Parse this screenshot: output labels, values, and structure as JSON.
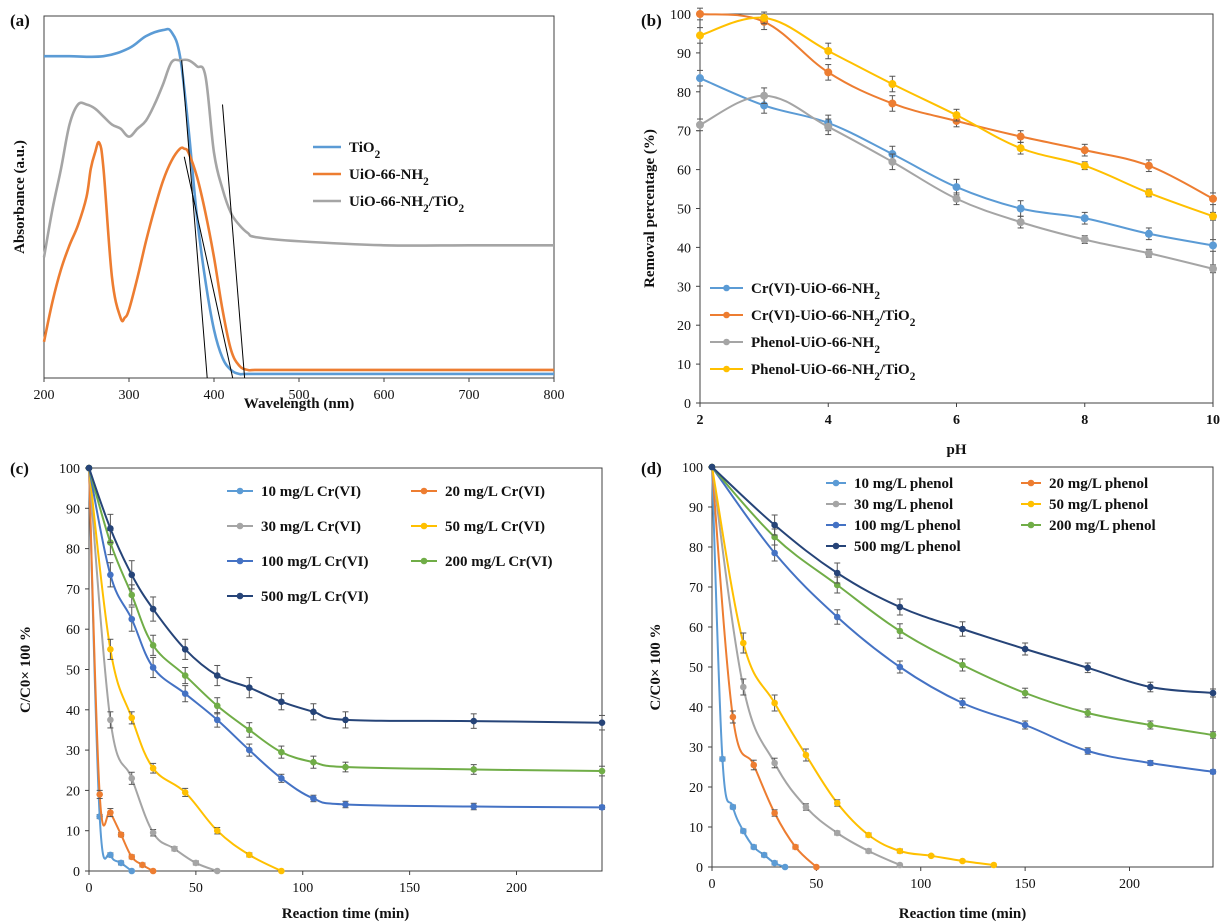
{
  "figure": {
    "colors": {
      "blue": "#5B9BD5",
      "orange": "#ED7D31",
      "gray": "#A5A5A5",
      "yellow": "#FFC000",
      "darkblue": "#4472C4",
      "green": "#70AD47",
      "navy": "#264478",
      "black": "#000000"
    }
  },
  "chart_data": [
    {
      "panel": "(a)",
      "type": "line",
      "xlabel": "Wavelength (nm)",
      "ylabel": "Absorbance (a.u.)",
      "xlim": [
        200,
        800
      ],
      "xticks": [
        200,
        300,
        400,
        500,
        600,
        700,
        800
      ],
      "yticks_shown": false,
      "legend_position": "right-center",
      "series": [
        {
          "name": "TiO2",
          "color": "#5B9BD5",
          "x": [
            200,
            230,
            270,
            300,
            320,
            340,
            350,
            360,
            370,
            380,
            390,
            400,
            410,
            420,
            430,
            440,
            500,
            600,
            700,
            800
          ],
          "y": [
            0.8,
            0.8,
            0.8,
            0.82,
            0.85,
            0.865,
            0.86,
            0.8,
            0.62,
            0.4,
            0.24,
            0.12,
            0.05,
            0.02,
            0.01,
            0.01,
            0.01,
            0.01,
            0.01,
            0.01
          ]
        },
        {
          "name": "UiO-66-NH2",
          "color": "#ED7D31",
          "x": [
            200,
            210,
            220,
            230,
            240,
            250,
            255,
            260,
            265,
            270,
            280,
            290,
            295,
            300,
            310,
            320,
            330,
            340,
            350,
            360,
            365,
            370,
            380,
            390,
            400,
            410,
            420,
            430,
            440,
            450,
            500,
            600,
            700,
            800
          ],
          "y": [
            0.09,
            0.19,
            0.27,
            0.33,
            0.38,
            0.45,
            0.52,
            0.56,
            0.585,
            0.52,
            0.25,
            0.15,
            0.15,
            0.17,
            0.25,
            0.34,
            0.42,
            0.49,
            0.54,
            0.57,
            0.57,
            0.56,
            0.5,
            0.41,
            0.3,
            0.17,
            0.07,
            0.03,
            0.02,
            0.02,
            0.02,
            0.02,
            0.02,
            0.02
          ]
        },
        {
          "name": "UiO-66-NH2/TiO2",
          "color": "#A5A5A5",
          "x": [
            200,
            210,
            220,
            230,
            240,
            250,
            260,
            270,
            280,
            290,
            300,
            310,
            320,
            330,
            340,
            350,
            360,
            370,
            380,
            390,
            400,
            410,
            420,
            430,
            440,
            450,
            500,
            600,
            700,
            800
          ],
          "y": [
            0.3,
            0.42,
            0.52,
            0.63,
            0.68,
            0.68,
            0.67,
            0.65,
            0.63,
            0.62,
            0.6,
            0.62,
            0.64,
            0.68,
            0.73,
            0.785,
            0.79,
            0.79,
            0.775,
            0.75,
            0.56,
            0.47,
            0.41,
            0.38,
            0.36,
            0.35,
            0.34,
            0.33,
            0.33,
            0.33
          ]
        },
        {
          "name": "tangent-1",
          "color": "#000000",
          "x": [
            362,
            392
          ],
          "y": [
            0.79,
            0.0
          ]
        },
        {
          "name": "tangent-2",
          "color": "#000000",
          "x": [
            365,
            422
          ],
          "y": [
            0.55,
            0.0
          ]
        },
        {
          "name": "tangent-3",
          "color": "#000000",
          "x": [
            410,
            436
          ],
          "y": [
            0.68,
            0.0
          ]
        }
      ]
    },
    {
      "panel": "(b)",
      "type": "line",
      "xlabel": "pH",
      "ylabel": "Removal percentage (%)",
      "xlim": [
        2,
        10
      ],
      "ylim": [
        0,
        100
      ],
      "xticks": [
        2,
        4,
        6,
        8,
        10
      ],
      "yticks": [
        0,
        10,
        20,
        30,
        40,
        50,
        60,
        70,
        80,
        90,
        100
      ],
      "legend_position": "bottom-left",
      "x": [
        2,
        3,
        4,
        5,
        6,
        7,
        8,
        9,
        10
      ],
      "series": [
        {
          "name": "Cr(VI)-UiO-66-NH2",
          "color": "#5B9BD5",
          "values": [
            83.5,
            76.5,
            72,
            64,
            55.5,
            50,
            47.5,
            43.5,
            40.5
          ],
          "error": [
            2,
            2,
            2,
            2,
            2,
            2,
            1.5,
            1.5,
            1.5
          ]
        },
        {
          "name": "Cr(VI)-UiO-66-NH2/TiO2",
          "color": "#ED7D31",
          "values": [
            100,
            98,
            85,
            77,
            72.5,
            68.5,
            65,
            61,
            52.5
          ],
          "error": [
            1.5,
            2,
            2,
            2,
            1.5,
            1.5,
            1.5,
            1.5,
            1.5
          ]
        },
        {
          "name": "Phenol-UiO-66-NH2",
          "color": "#A5A5A5",
          "values": [
            71.5,
            79,
            71,
            62,
            52.5,
            46.5,
            42,
            38.5,
            34.5
          ],
          "error": [
            1.5,
            2,
            2,
            2,
            1.5,
            1.5,
            1,
            1,
            1
          ]
        },
        {
          "name": "Phenol-UiO-66-NH2/TiO2",
          "color": "#FFC000",
          "values": [
            94.5,
            99,
            90.5,
            82,
            74,
            65.5,
            61,
            54,
            48
          ],
          "error": [
            2,
            1.5,
            2,
            2,
            1.5,
            1.5,
            1,
            1,
            1
          ]
        }
      ]
    },
    {
      "panel": "(c)",
      "type": "line",
      "xlabel": "Reaction time (min)",
      "ylabel": "C/C0× 100 %",
      "xlim": [
        0,
        240
      ],
      "ylim": [
        0,
        100
      ],
      "xticks": [
        0,
        50,
        100,
        150,
        200
      ],
      "yticks": [
        0,
        10,
        20,
        30,
        40,
        50,
        60,
        70,
        80,
        90,
        100
      ],
      "legend_position": "top-right",
      "series": [
        {
          "name": "10 mg/L Cr(VI)",
          "color": "#5B9BD5",
          "x": [
            0,
            5,
            10,
            15,
            20
          ],
          "values": [
            100,
            13.5,
            4,
            2,
            0
          ],
          "error": [
            0,
            0.5,
            0.5,
            0.5,
            0
          ]
        },
        {
          "name": "20 mg/L Cr(VI)",
          "color": "#ED7D31",
          "x": [
            0,
            5,
            10,
            15,
            20,
            25,
            30
          ],
          "values": [
            100,
            19,
            14.5,
            9,
            3.5,
            1.5,
            0
          ],
          "error": [
            0,
            1,
            1,
            0.5,
            0.5,
            0.5,
            0
          ]
        },
        {
          "name": "30 mg/L Cr(VI)",
          "color": "#A5A5A5",
          "x": [
            0,
            10,
            20,
            30,
            40,
            50,
            60
          ],
          "values": [
            100,
            37.5,
            23,
            9.5,
            5.5,
            2,
            0
          ],
          "error": [
            0,
            2,
            1.5,
            0.8,
            0.5,
            0.5,
            0
          ]
        },
        {
          "name": "50 mg/L Cr(VI)",
          "color": "#FFC000",
          "x": [
            0,
            10,
            20,
            30,
            45,
            60,
            75,
            90
          ],
          "values": [
            100,
            55,
            38,
            25.5,
            19.5,
            10,
            4,
            0
          ],
          "error": [
            0,
            2.5,
            1.5,
            1.2,
            1,
            0.8,
            0.5,
            0
          ]
        },
        {
          "name": "100 mg/L Cr(VI)",
          "color": "#4472C4",
          "x": [
            0,
            10,
            20,
            30,
            45,
            60,
            75,
            90,
            105,
            120,
            180,
            240
          ],
          "values": [
            100,
            73.5,
            62.5,
            50.5,
            44,
            37.5,
            30,
            23,
            18,
            16.5,
            16,
            15.8
          ],
          "error": [
            0,
            3,
            3,
            2.5,
            2,
            1.8,
            1.5,
            1,
            0.8,
            0.8,
            0.8,
            0.5
          ]
        },
        {
          "name": "200 mg/L Cr(VI)",
          "color": "#70AD47",
          "x": [
            0,
            10,
            20,
            30,
            45,
            60,
            75,
            90,
            105,
            120,
            180,
            240
          ],
          "values": [
            100,
            81.5,
            68.5,
            56,
            48.5,
            41,
            35,
            29.5,
            27,
            25.8,
            25.2,
            24.8
          ],
          "error": [
            0,
            3,
            2.5,
            2.5,
            2,
            2,
            1.8,
            1.5,
            1.5,
            1.2,
            1.2,
            1.2
          ]
        },
        {
          "name": "500 mg/L Cr(VI)",
          "color": "#264478",
          "x": [
            0,
            10,
            20,
            30,
            45,
            60,
            75,
            90,
            105,
            120,
            180,
            240
          ],
          "values": [
            100,
            85,
            73.5,
            65,
            55,
            48.5,
            45.5,
            42,
            39.5,
            37.5,
            37.2,
            36.8
          ],
          "error": [
            0,
            3.5,
            3.5,
            3,
            2.5,
            2.5,
            2.5,
            2,
            2,
            2,
            1.8,
            1.8
          ]
        }
      ]
    },
    {
      "panel": "(d)",
      "type": "line",
      "xlabel": "Reaction time (min)",
      "ylabel": "C/C0× 100 %",
      "xlim": [
        0,
        240
      ],
      "ylim": [
        0,
        100
      ],
      "xticks": [
        0,
        50,
        100,
        150,
        200
      ],
      "yticks": [
        0,
        10,
        20,
        30,
        40,
        50,
        60,
        70,
        80,
        90,
        100
      ],
      "legend_position": "top-right",
      "series": [
        {
          "name": "10 mg/L phenol",
          "color": "#5B9BD5",
          "x": [
            0,
            5,
            10,
            15,
            20,
            25,
            30,
            35
          ],
          "values": [
            100,
            27,
            15,
            9,
            5,
            3,
            1,
            0
          ],
          "error": [
            0,
            0.5,
            0.5,
            0.5,
            0.5,
            0.5,
            0.5,
            0
          ]
        },
        {
          "name": "20 mg/L phenol",
          "color": "#ED7D31",
          "x": [
            0,
            10,
            20,
            30,
            40,
            50
          ],
          "values": [
            100,
            37.5,
            25.5,
            13.5,
            5,
            0
          ],
          "error": [
            0,
            1.5,
            1.2,
            0.8,
            0.5,
            0
          ]
        },
        {
          "name": "30 mg/L phenol",
          "color": "#A5A5A5",
          "x": [
            0,
            15,
            30,
            45,
            60,
            75,
            90
          ],
          "values": [
            100,
            45,
            26,
            15,
            8.5,
            4,
            0.5
          ],
          "error": [
            0,
            2,
            1.2,
            0.8,
            0.5,
            0.5,
            0
          ]
        },
        {
          "name": "50 mg/L phenol",
          "color": "#FFC000",
          "x": [
            0,
            15,
            30,
            45,
            60,
            75,
            90,
            105,
            120,
            135
          ],
          "values": [
            100,
            56,
            41,
            28,
            16,
            8,
            4,
            2.8,
            1.5,
            0.5
          ],
          "error": [
            0,
            2.5,
            2,
            1.5,
            0.8,
            0.5,
            0.5,
            0.3,
            0.3,
            0
          ]
        },
        {
          "name": "100 mg/L phenol",
          "color": "#4472C4",
          "x": [
            0,
            30,
            60,
            90,
            120,
            150,
            180,
            210,
            240
          ],
          "values": [
            100,
            78.5,
            62.5,
            50,
            41,
            35.5,
            29,
            26,
            23.8
          ],
          "error": [
            0,
            2,
            1.8,
            1.5,
            1.2,
            1,
            0.8,
            0.6,
            0.5
          ]
        },
        {
          "name": "200 mg/L phenol",
          "color": "#70AD47",
          "x": [
            0,
            30,
            60,
            90,
            120,
            150,
            180,
            210,
            240
          ],
          "values": [
            100,
            82.5,
            70.5,
            59,
            50.5,
            43.5,
            38.5,
            35.5,
            33
          ],
          "error": [
            0,
            2,
            2,
            1.8,
            1.5,
            1.2,
            1,
            1,
            0.8
          ]
        },
        {
          "name": "500 mg/L phenol",
          "color": "#264478",
          "x": [
            0,
            30,
            60,
            90,
            120,
            150,
            180,
            210,
            240
          ],
          "values": [
            100,
            85.5,
            73.5,
            65,
            59.5,
            54.5,
            49.8,
            45,
            43.5
          ],
          "error": [
            0,
            2.5,
            2.5,
            2,
            1.8,
            1.5,
            1.2,
            1.2,
            1
          ]
        }
      ]
    }
  ]
}
